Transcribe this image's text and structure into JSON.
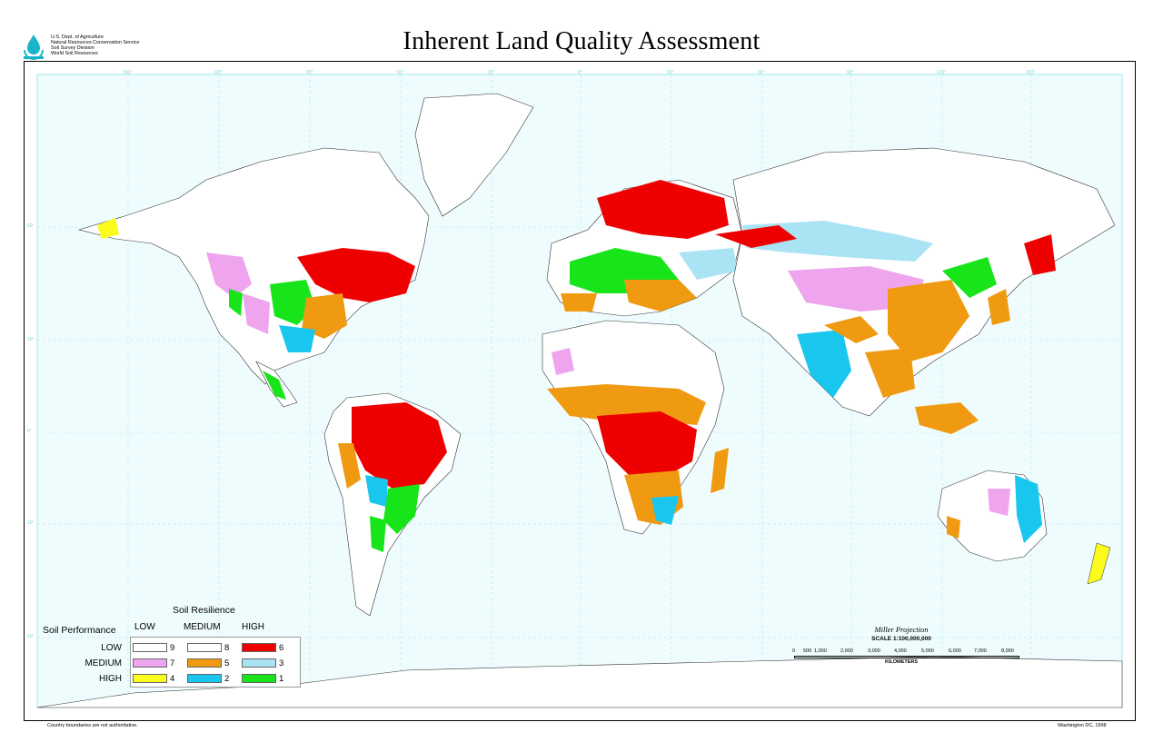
{
  "header": {
    "title": "Inherent Land Quality Assessment",
    "agency_lines": [
      "U.S. Dept. of Agriculture",
      "Natural Resources Conservation Service",
      "Soil Survey Division",
      "World Soil Resources"
    ],
    "logo_icon": "water-drop-logo-icon"
  },
  "map": {
    "graticule_labels_top": [
      "150°",
      "120°",
      "90°",
      "60°",
      "30°",
      "0°",
      "30°",
      "60°",
      "90°",
      "120°",
      "150°"
    ],
    "graticule_labels_side": [
      "60°",
      "30°",
      "0°",
      "30°",
      "60°"
    ],
    "ocean_color": "#effcfd",
    "graticule_color": "#9ee6ee",
    "land_color_unclassified": "#ffffff"
  },
  "legend": {
    "title": "Soil Resilience",
    "row_axis_title": "Soil Performance",
    "columns": [
      "LOW",
      "MEDIUM",
      "HIGH"
    ],
    "rows": [
      "LOW",
      "MEDIUM",
      "HIGH"
    ],
    "classes": [
      {
        "id": "9",
        "color": "#ffffff"
      },
      {
        "id": "8",
        "color": "#ffffff"
      },
      {
        "id": "6",
        "color": "#ee0000"
      },
      {
        "id": "7",
        "color": "#eea5ee"
      },
      {
        "id": "5",
        "color": "#f09a12"
      },
      {
        "id": "3",
        "color": "#a9e3f4"
      },
      {
        "id": "4",
        "color": "#fbfb1d"
      },
      {
        "id": "2",
        "color": "#19c6ee"
      },
      {
        "id": "1",
        "color": "#17e51a"
      }
    ]
  },
  "scale": {
    "projection": "Miller Projection",
    "ratio": "SCALE 1:100,000,000",
    "labels": [
      "0",
      "500",
      "1,000",
      "2,000",
      "3,000",
      "4,000",
      "5,000",
      "6,000",
      "7,000",
      "8,000"
    ],
    "units": "KILOMETERS"
  },
  "footer": {
    "note": "Country boundaries are not authoritative.",
    "place_date": "Washington DC, 1998"
  }
}
